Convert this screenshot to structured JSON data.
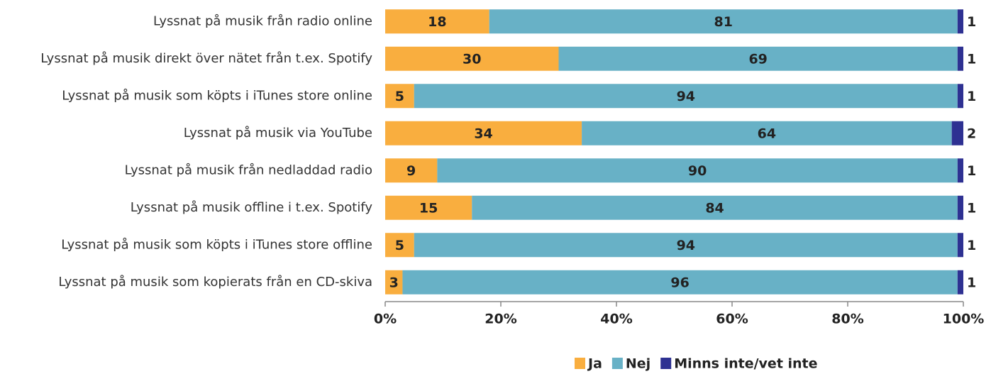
{
  "chart_data": {
    "type": "stacked-bar-horizontal",
    "categories": [
      "Lyssnat på musik från radio online",
      "Lyssnat på musik direkt över nätet från t.ex. Spotify",
      "Lyssnat på musik som köpts i iTunes store online",
      "Lyssnat på musik via YouTube",
      "Lyssnat på musik från nedladdad radio",
      "Lyssnat på musik offline i t.ex. Spotify",
      "Lyssnat på musik som köpts i iTunes store offline",
      "Lyssnat på musik som kopierats från en CD-skiva"
    ],
    "series": [
      {
        "name": "Ja",
        "color": "#f9ae3f",
        "values": [
          18,
          30,
          5,
          34,
          9,
          15,
          5,
          3
        ]
      },
      {
        "name": "Nej",
        "color": "#68b1c6",
        "values": [
          81,
          69,
          94,
          64,
          90,
          84,
          94,
          96
        ]
      },
      {
        "name": "Minns inte/vet inte",
        "color": "#2e3192",
        "values": [
          1,
          1,
          1,
          2,
          1,
          1,
          1,
          1
        ]
      }
    ],
    "xlim": [
      0,
      100
    ],
    "xticks": [
      {
        "value": 0,
        "label": "0%"
      },
      {
        "value": 20,
        "label": "20%"
      },
      {
        "value": 40,
        "label": "40%"
      },
      {
        "value": 60,
        "label": "60%"
      },
      {
        "value": 80,
        "label": "80%"
      },
      {
        "value": 100,
        "label": "100%"
      }
    ],
    "legend": "bottom"
  }
}
